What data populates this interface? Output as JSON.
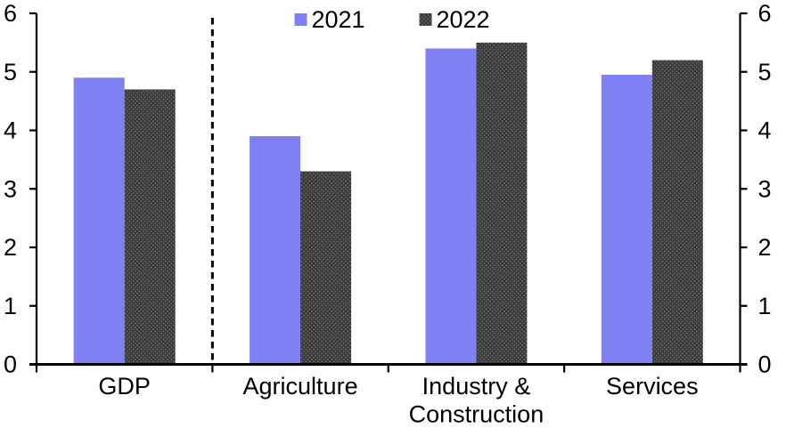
{
  "chart_data": {
    "type": "bar",
    "title": "",
    "xlabel": "",
    "ylabel": "",
    "categories": [
      "GDP",
      "Agriculture",
      "Industry &\nConstruction",
      "Services"
    ],
    "series": [
      {
        "name": "2021",
        "values": [
          4.9,
          3.9,
          5.4,
          4.95
        ],
        "color": "#8080F5",
        "pattern": "solid"
      },
      {
        "name": "2022",
        "values": [
          4.7,
          3.3,
          5.5,
          5.2
        ],
        "color": "#3B3B3B",
        "pattern": "dots",
        "dot_color": "#777777"
      }
    ],
    "ylim": [
      0,
      6
    ],
    "yticks": [
      0,
      1,
      2,
      3,
      4,
      5,
      6
    ],
    "left_axis": true,
    "right_axis": true,
    "grid": false,
    "legend_position": "top-center",
    "separator": {
      "after_category_index": 0,
      "style": "dashed"
    },
    "axis_color": "#000000",
    "text_color": "#000000"
  }
}
